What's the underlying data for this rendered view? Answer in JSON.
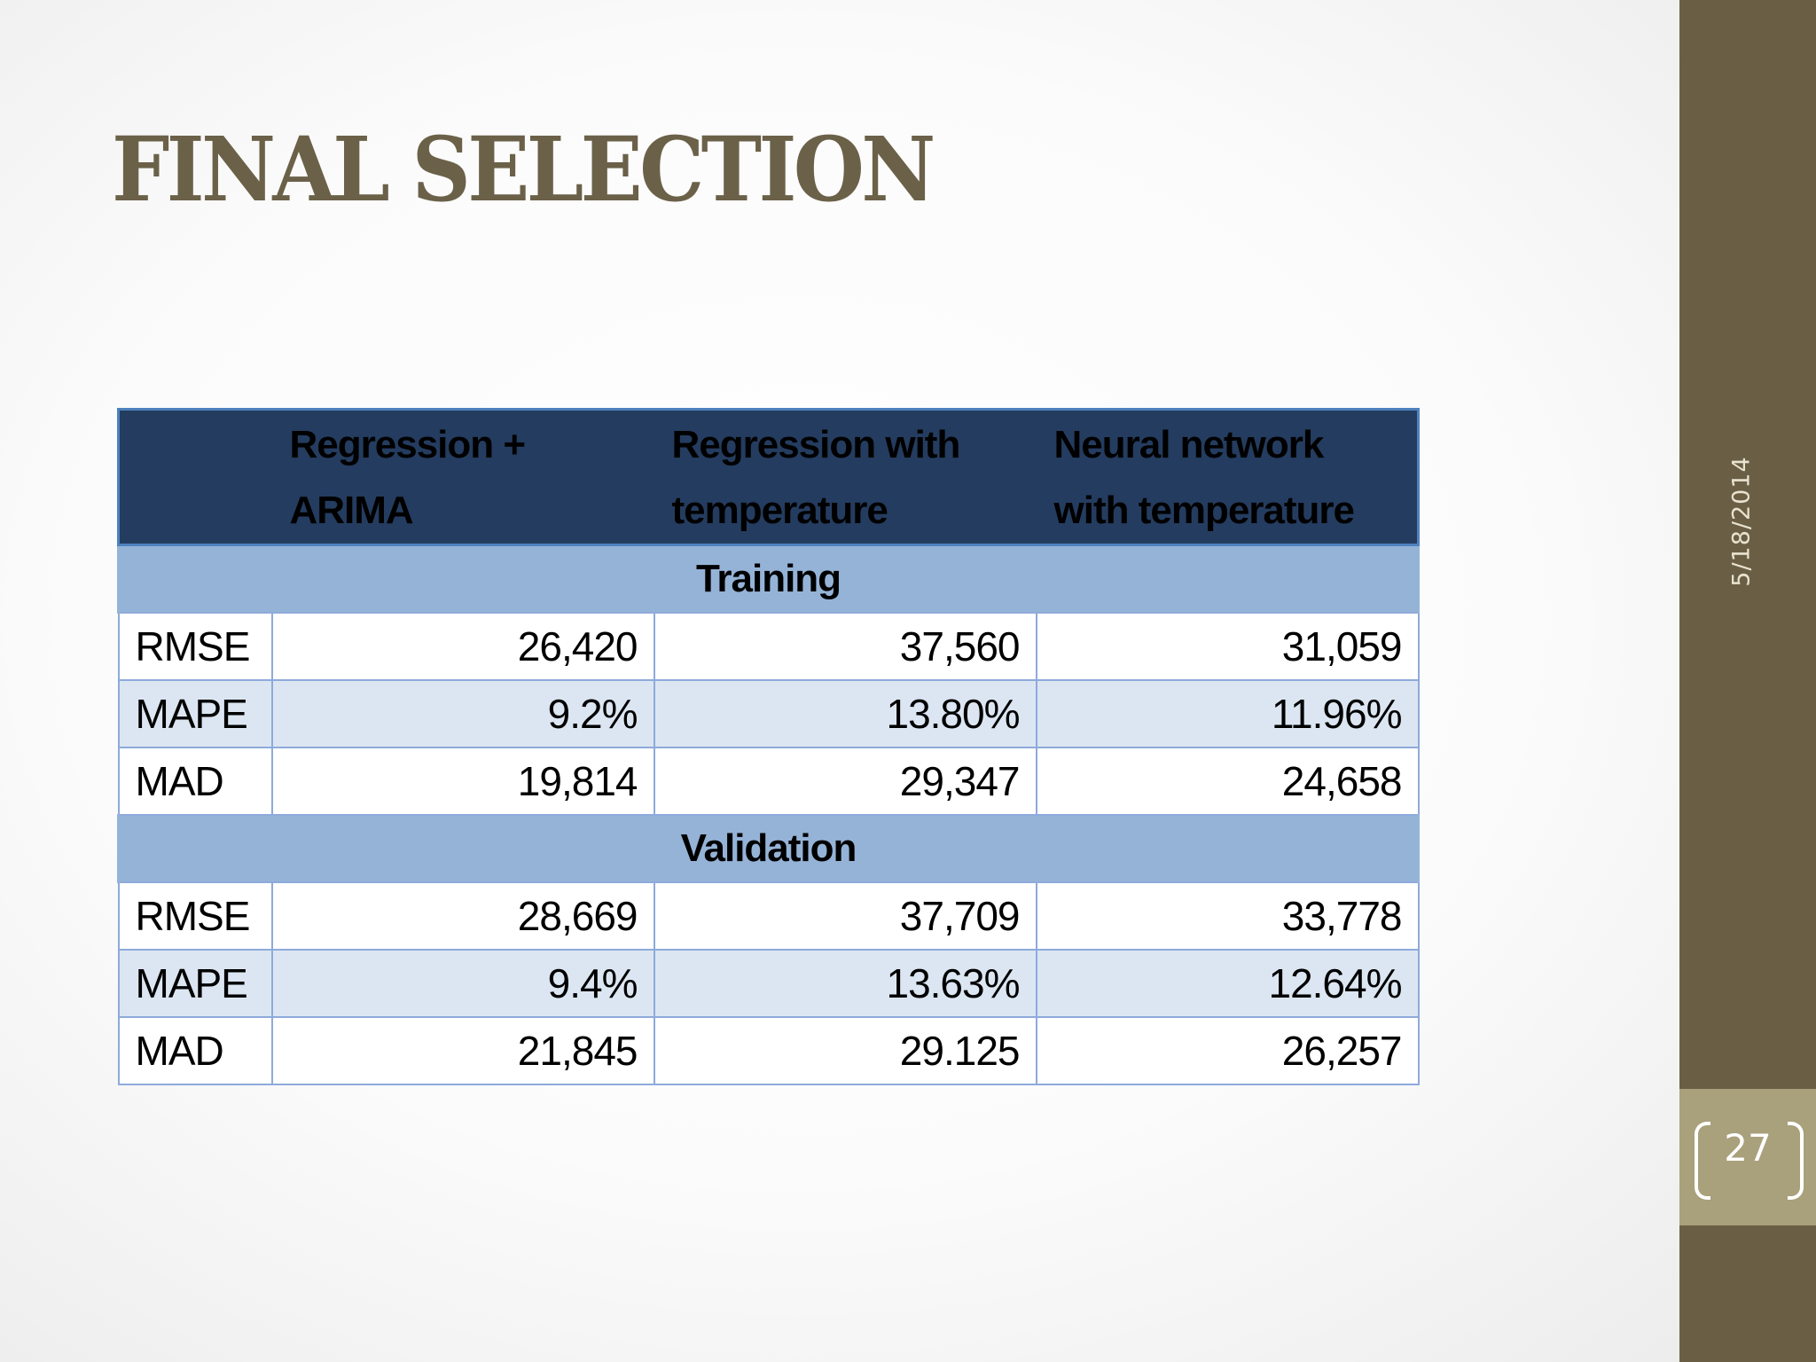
{
  "slide": {
    "title": "FINAL SELECTION",
    "date": "5/18/2014",
    "page_number": "27"
  },
  "table": {
    "headers": [
      "",
      "Regression + ARIMA",
      "Regression with temperature",
      "Neural network with temperature"
    ],
    "sections": [
      {
        "label": "Training",
        "rows": [
          {
            "metric": "RMSE",
            "values": [
              "26,420",
              "37,560",
              "31,059"
            ]
          },
          {
            "metric": "MAPE",
            "values": [
              "9.2%",
              "13.80%",
              "11.96%"
            ]
          },
          {
            "metric": "MAD",
            "values": [
              "19,814",
              "29,347",
              "24,658"
            ]
          }
        ]
      },
      {
        "label": "Validation",
        "rows": [
          {
            "metric": "RMSE",
            "values": [
              "28,669",
              "37,709",
              "33,778"
            ]
          },
          {
            "metric": "MAPE",
            "values": [
              "9.4%",
              "13.63%",
              "12.64%"
            ]
          },
          {
            "metric": "MAD",
            "values": [
              "21,845",
              "29.125",
              "26,257"
            ]
          }
        ]
      }
    ]
  },
  "colors": {
    "title": "#6b6149",
    "sidebar": "#6a5f45",
    "page_box": "#a9a07c",
    "header_bg": "#243c5f",
    "section_bg": "#95b3d7",
    "row_alt_bg": "#dce6f2",
    "border": "#8eaadb"
  }
}
